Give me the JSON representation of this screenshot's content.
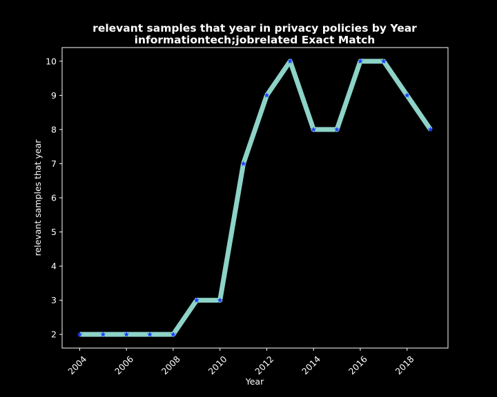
{
  "chart_data": {
    "type": "line",
    "title": "relevant samples that year in privacy policies by Year",
    "subtitle": "informationtech;jobrelated Exact Match",
    "xlabel": "Year",
    "ylabel": "relevant samples that year",
    "x": [
      2004,
      2005,
      2006,
      2007,
      2008,
      2009,
      2010,
      2011,
      2012,
      2013,
      2014,
      2015,
      2016,
      2017,
      2018,
      2019
    ],
    "series": [
      {
        "values": [
          2,
          2,
          2,
          2,
          2,
          3,
          3,
          7,
          9,
          10,
          8,
          8,
          10,
          10,
          9,
          8
        ]
      }
    ],
    "xticks": [
      "2004",
      "2006",
      "2008",
      "2010",
      "2012",
      "2014",
      "2016",
      "2018"
    ],
    "yticks": [
      "2",
      "3",
      "4",
      "5",
      "6",
      "7",
      "8",
      "9",
      "10"
    ],
    "xlim": [
      2003.25,
      2019.75
    ],
    "ylim": [
      1.6,
      10.4
    ],
    "grid": false,
    "colors": {
      "background": "#000000",
      "line": "#8dd3c7",
      "marker": "#1f3cff",
      "axes": "#ffffff",
      "text": "#ffffff"
    }
  }
}
